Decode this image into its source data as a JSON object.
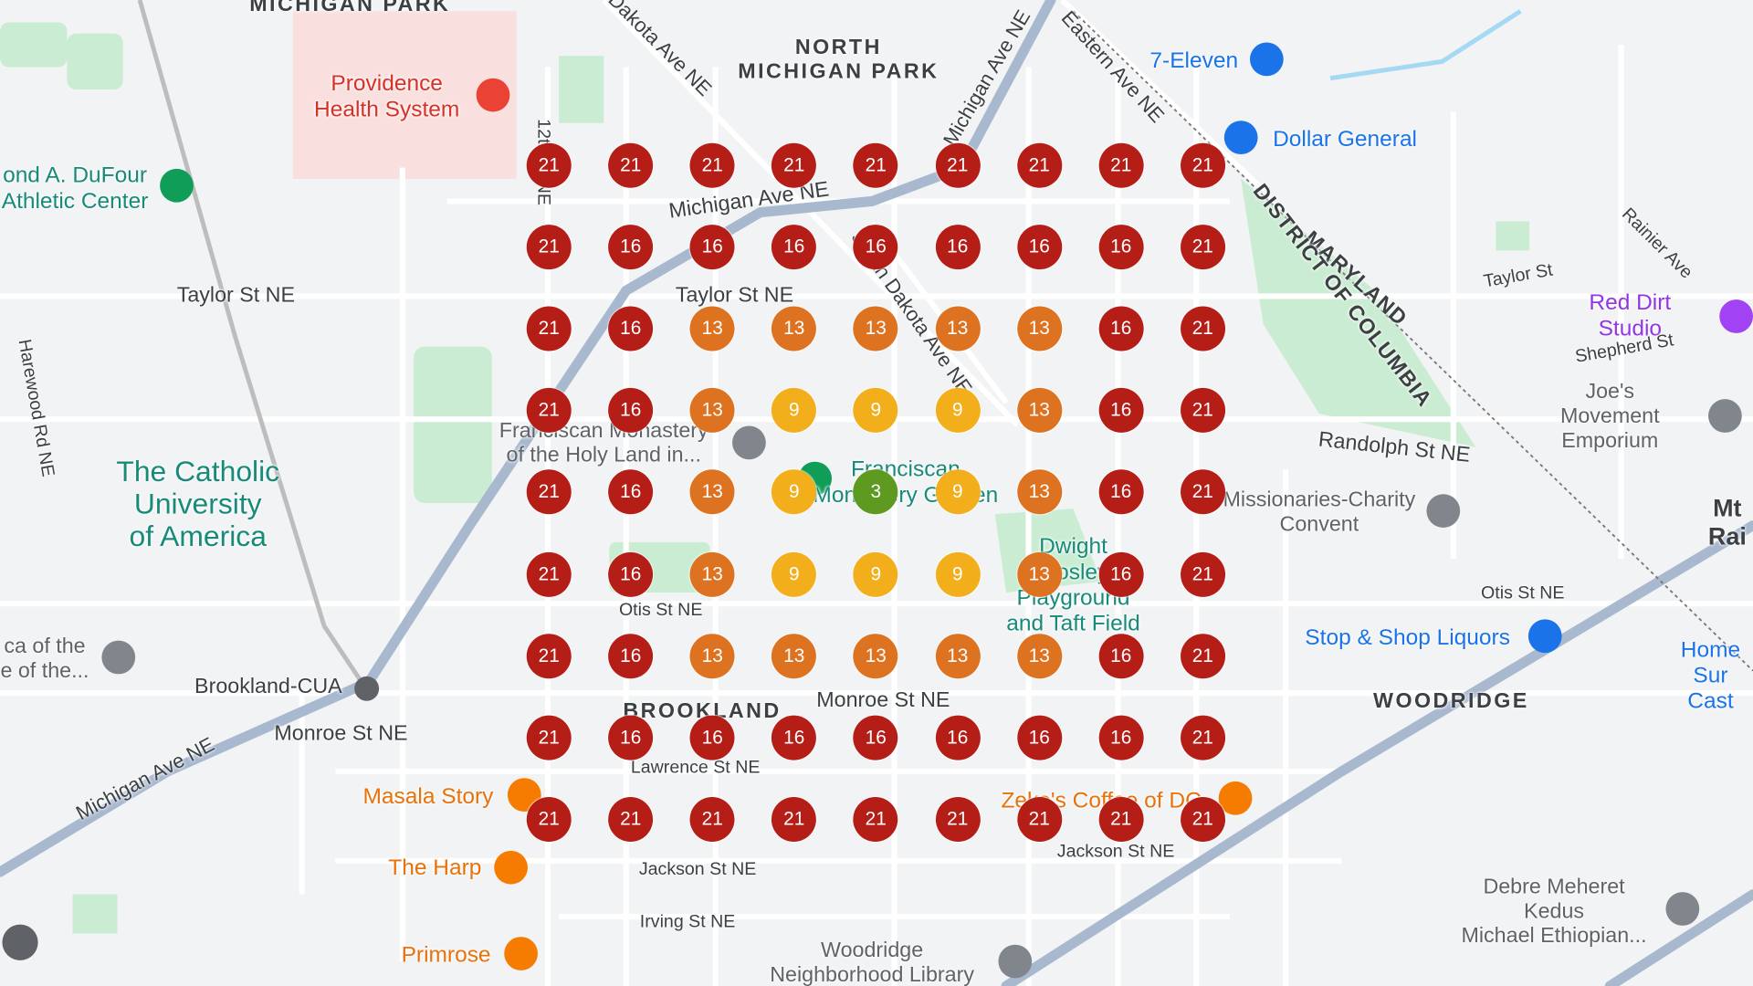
{
  "map": {
    "labels": [
      "MICHIGAN PARK",
      "NORTH\nMICHIGAN PARK",
      "Providence\nHealth System",
      "7-Eleven",
      "Dollar General",
      "ond A. DuFour\nAthletic Center",
      "Taylor St NE",
      "Taylor St NE",
      "Michigan Ave NE",
      "The Catholic\nUniversity\nof America",
      "Franciscan Monastery\nof the Holy Land in...",
      "Franciscan\nMonastery Garden",
      "Dwight\nMosley\nPlayground\nand Taft Field",
      "Missionaries-Charity\nConvent",
      "Randolph St NE",
      "Joe's Movement\nEmporium",
      "Red Dirt Studio",
      "Mt Rai",
      "Otis St NE",
      "Otis St NE",
      "Stop & Shop Liquors",
      "Home Sur\nCast",
      "WOODRIDGE",
      "BROOKLAND",
      "Monroe St NE",
      "Monroe St NE",
      "Brookland-CUA",
      "ca of the\ne of the...",
      "Masala Story",
      "The Harp",
      "Primrose",
      "Lawrence St NE",
      "Jackson St NE",
      "Jackson St NE",
      "Irving St NE",
      "Woodridge\nNeighborhood Library",
      "Zeke's Coffee of DC",
      "Debre Meheret Kedus\nMichael Ethiopian...",
      "Michigan Ave NE",
      "MARYLAND",
      "DISTRICT OF COLUMBIA",
      "Eastern Ave NE",
      "Dakota Ave NE",
      "Michigan Ave NE",
      "South Dakota Ave NE",
      "12th St NE",
      "Harewood Rd NE",
      "Shepherd St",
      "Taylor St",
      "Rainier Ave"
    ]
  },
  "grid": {
    "rows": [
      [
        21,
        21,
        21,
        21,
        21,
        21,
        21,
        21,
        21
      ],
      [
        21,
        16,
        16,
        16,
        16,
        16,
        16,
        16,
        21
      ],
      [
        21,
        16,
        13,
        13,
        13,
        13,
        13,
        16,
        21
      ],
      [
        21,
        16,
        13,
        9,
        9,
        9,
        13,
        16,
        21
      ],
      [
        21,
        16,
        13,
        9,
        3,
        9,
        13,
        16,
        21
      ],
      [
        21,
        16,
        13,
        9,
        9,
        9,
        13,
        16,
        21
      ],
      [
        21,
        16,
        13,
        13,
        13,
        13,
        13,
        16,
        21
      ],
      [
        21,
        16,
        16,
        16,
        16,
        16,
        16,
        16,
        21
      ],
      [
        21,
        21,
        21,
        21,
        21,
        21,
        21,
        21,
        21
      ]
    ],
    "colors": {
      "3": "#5e9a1f",
      "9": "#f3af1b",
      "13": "#dd7321",
      "16": "#b51d17",
      "21": "#b51d17"
    }
  }
}
